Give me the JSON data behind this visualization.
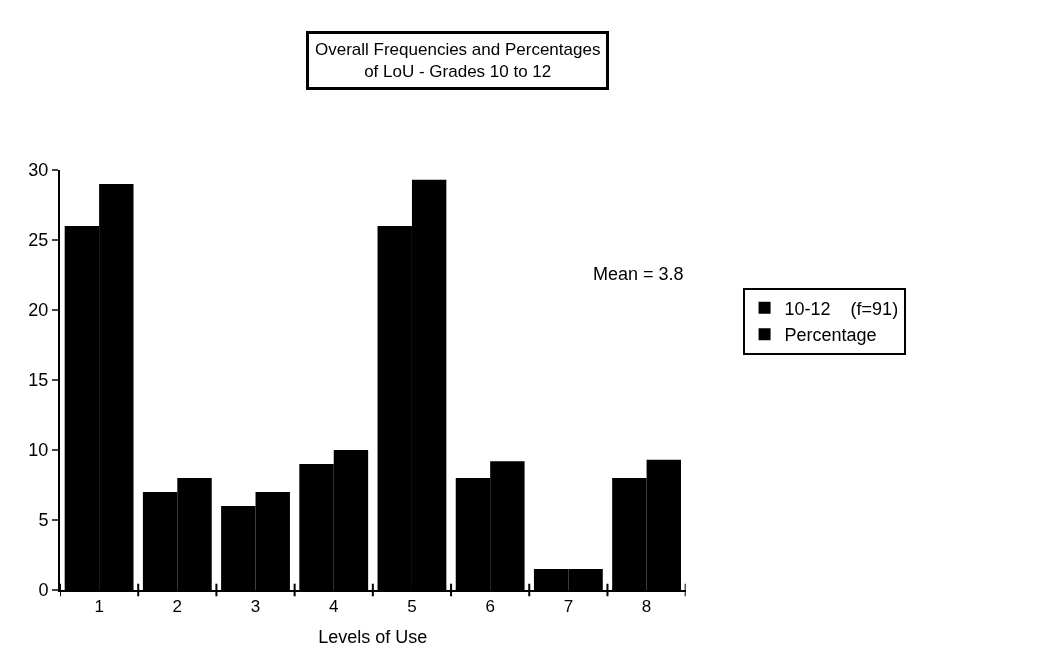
{
  "chart_data": {
    "type": "bar",
    "title": "Overall Frequencies and Percentages\nof LoU - Grades 10 to 12",
    "xlabel": "Levels of Use",
    "categories": [
      "1",
      "2",
      "3",
      "4",
      "5",
      "6",
      "7",
      "8"
    ],
    "series": [
      {
        "name": "10-12    (f=91)",
        "color": "#000000",
        "values": [
          26,
          7,
          6,
          9,
          26,
          8,
          1.5,
          8
        ]
      },
      {
        "name": "Percentage",
        "color": "#000000",
        "values": [
          29,
          8,
          7,
          10,
          29.3,
          9.2,
          1.5,
          9.3
        ]
      }
    ],
    "annotations": [
      "Mean = 3.8"
    ],
    "ylim": [
      0,
      30
    ],
    "yticks": [
      0,
      5,
      10,
      15,
      20,
      25,
      30
    ],
    "legend": "right"
  }
}
